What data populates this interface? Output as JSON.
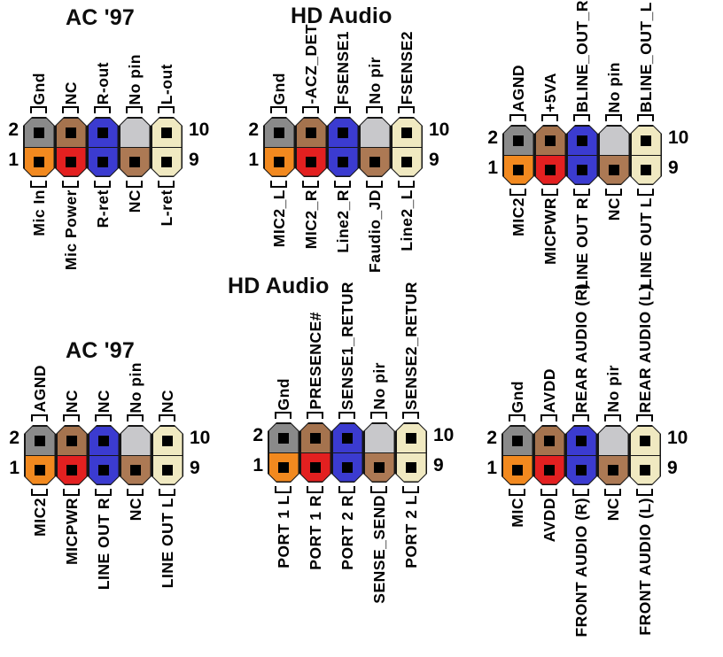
{
  "diagram": {
    "background": "#ffffff",
    "description_titles": [
      "AC '97",
      "HD Audio",
      "HD Audio",
      "AC '97"
    ]
  },
  "palette": {
    "gray": "#8a8a8a",
    "brown": "#a5734e",
    "blue": "#3b3bd0",
    "light_gray": "#c8c8cb",
    "cream": "#f0e9c1",
    "orange": "#f2891f",
    "red": "#e32020",
    "brown_light": "#ac7954",
    "outline": "#161616",
    "hole": "#000000"
  },
  "column_colors": [
    [
      "gray",
      "orange"
    ],
    [
      "brown",
      "red"
    ],
    [
      "blue",
      "blue"
    ],
    [
      "light_gray",
      "brown_light"
    ],
    [
      "cream",
      "cream"
    ]
  ],
  "no_pin_column_index": 3,
  "pin_numbers": {
    "top_left": "2",
    "bottom_left": "1",
    "top_right": "10",
    "bottom_right": "9"
  },
  "connectors": [
    {
      "id": "top-left-ac97",
      "title": "AC '97",
      "top_labels": [
        "Gnd",
        "NC",
        "R-out",
        "No pin",
        "L-out"
      ],
      "bottom_labels": [
        "Mic In",
        "Mic Power",
        "R-ret",
        "NC",
        "L-ret"
      ]
    },
    {
      "id": "top-center-hd-audio",
      "title": "HD Audio",
      "top_labels": [
        "Gnd",
        "-ACZ_DET",
        "FSENSE1",
        "No pir",
        "FSENSE2"
      ],
      "bottom_labels": [
        "MIC2_L",
        "MIC2_R",
        "Line2_R",
        "Faudio_JD",
        "Line2_L"
      ]
    },
    {
      "id": "top-right",
      "top_labels": [
        "AGND",
        "+5VA",
        "BLINE_OUT_R",
        "No pin",
        "BLINE_OUT_L"
      ],
      "bottom_labels": [
        "MIC2",
        "MICPWR",
        "LINE OUT R",
        "NC",
        "LINE OUT L"
      ]
    },
    {
      "id": "bottom-left-ac97",
      "title": "AC '97",
      "top_labels": [
        "AGND",
        "NC",
        "NC",
        "No pin",
        "NC"
      ],
      "bottom_labels": [
        "MIC2",
        "MICPWR",
        "LINE OUT R",
        "NC",
        "LINE OUT L"
      ]
    },
    {
      "id": "bottom-center-hd-audio",
      "title": "HD Audio",
      "top_labels": [
        "Gnd",
        "PRESENCE#",
        "SENSE1_RETUR",
        "No pir",
        "SENSE2_RETUR"
      ],
      "bottom_labels": [
        "PORT 1 L",
        "PORT 1 R",
        "PORT 2 R",
        "SENSE_SEND",
        "PORT 2 L"
      ]
    },
    {
      "id": "bottom-right",
      "top_labels": [
        "Gnd",
        "AVDD",
        "REAR AUDIO (R)",
        "No pir",
        "REAR AUDIO (L)"
      ],
      "bottom_labels": [
        "MIC",
        "AVDD",
        "FRONT AUDIO (R)",
        "NC",
        "FRONT AUDIO (L)"
      ]
    }
  ]
}
